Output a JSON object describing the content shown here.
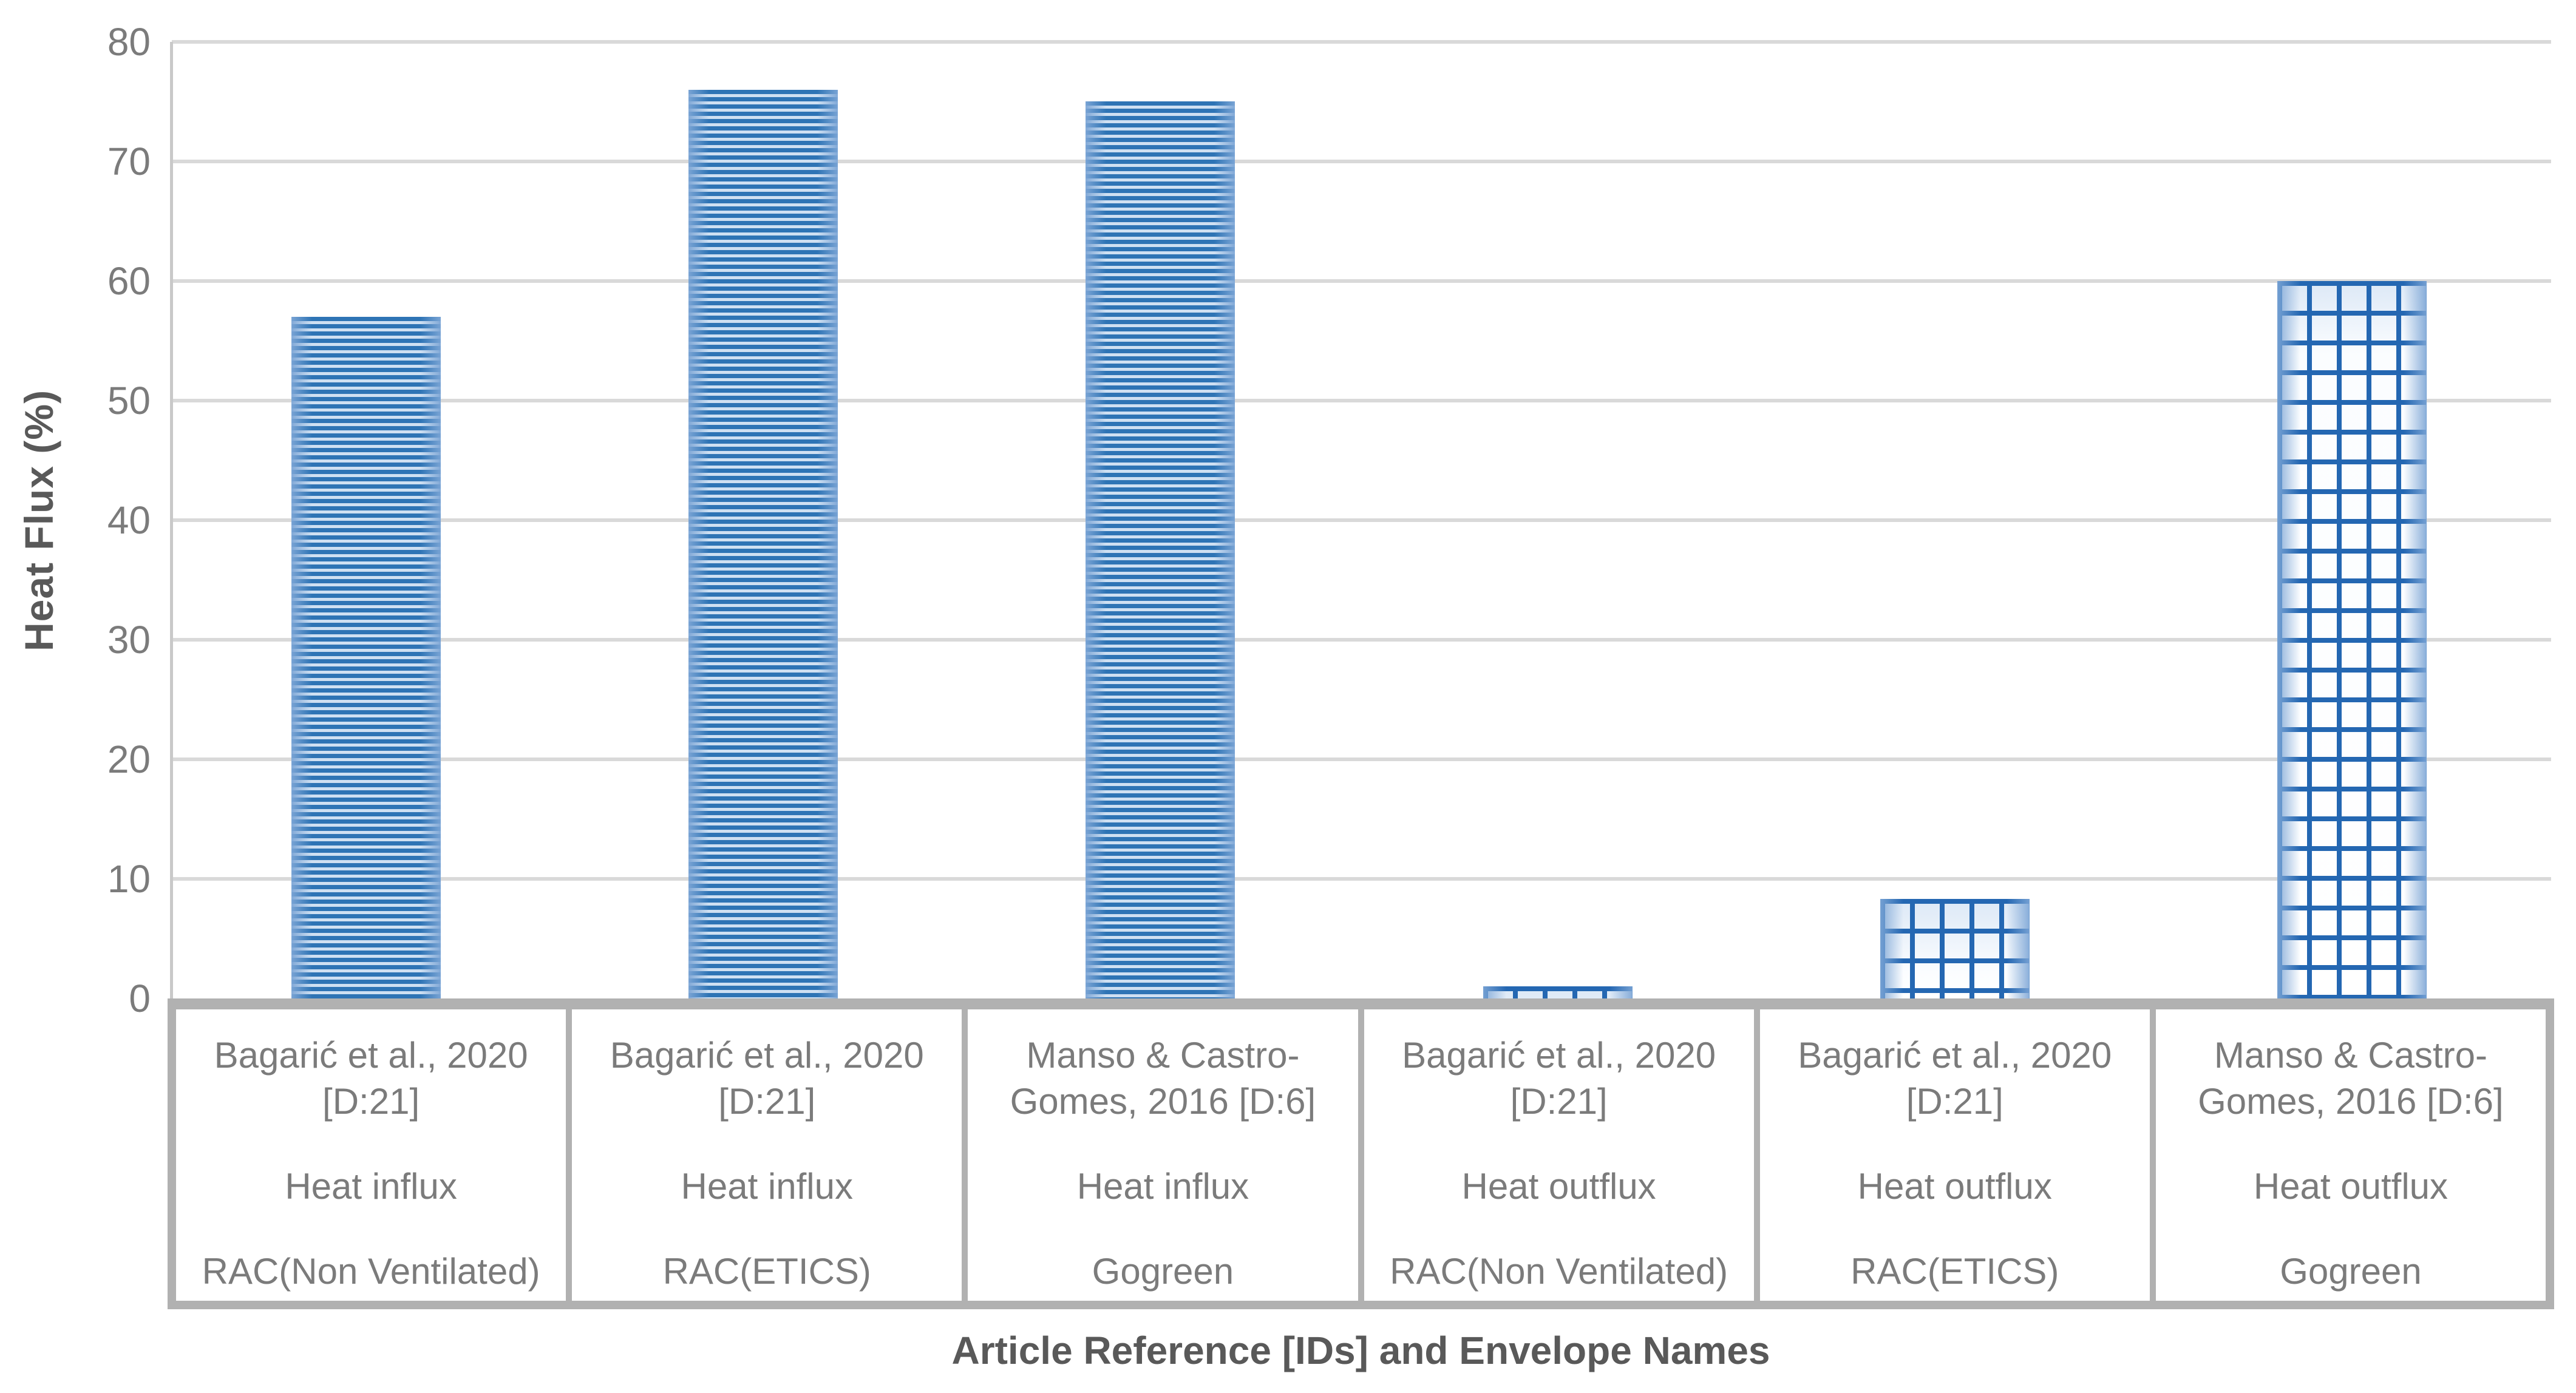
{
  "chart_data": {
    "type": "bar",
    "title": "",
    "ylabel": "Heat Flux (%)",
    "xlabel": "Article Reference [IDs] and Envelope Names",
    "ylim": [
      0,
      80
    ],
    "ytick_step": 10,
    "yticks": [
      80,
      70,
      60,
      50,
      40,
      30,
      20,
      10,
      0
    ],
    "grid": true,
    "legend": "none",
    "categories": [
      {
        "reference": "Bagarić et al., 2020 [D:21]",
        "flux": "Heat influx",
        "envelope": "RAC(Non Ventilated)"
      },
      {
        "reference": "Bagarić et al., 2020 [D:21]",
        "flux": "Heat influx",
        "envelope": "RAC(ETICS)"
      },
      {
        "reference": "Manso & Castro-Gomes, 2016 [D:6]",
        "flux": "Heat influx",
        "envelope": "Gogreen"
      },
      {
        "reference": "Bagarić et al., 2020 [D:21]",
        "flux": "Heat outflux",
        "envelope": "RAC(Non Ventilated)"
      },
      {
        "reference": "Bagarić et al., 2020 [D:21]",
        "flux": "Heat outflux",
        "envelope": "RAC(ETICS)"
      },
      {
        "reference": "Manso & Castro-Gomes, 2016 [D:6]",
        "flux": "Heat outflux",
        "envelope": "Gogreen"
      }
    ],
    "values": [
      57,
      76,
      75,
      1,
      8.3,
      60
    ],
    "bar_patterns": [
      "hstripe",
      "hstripe",
      "hstripe",
      "grid",
      "grid",
      "grid"
    ],
    "pattern_legend": {
      "hstripe": "horizontal-stripe fill (Heat influx)",
      "grid": "grid fill (Heat outflux)"
    }
  },
  "colors": {
    "bar_blue": "#2e74b5",
    "bar_light_blue": "#cfe0f2",
    "gridline_gray": "#d9d9d9",
    "box_border_gray": "#b1b1b1",
    "label_gray": "#7b7b7b",
    "title_gray": "#595959",
    "background": "#ffffff"
  }
}
